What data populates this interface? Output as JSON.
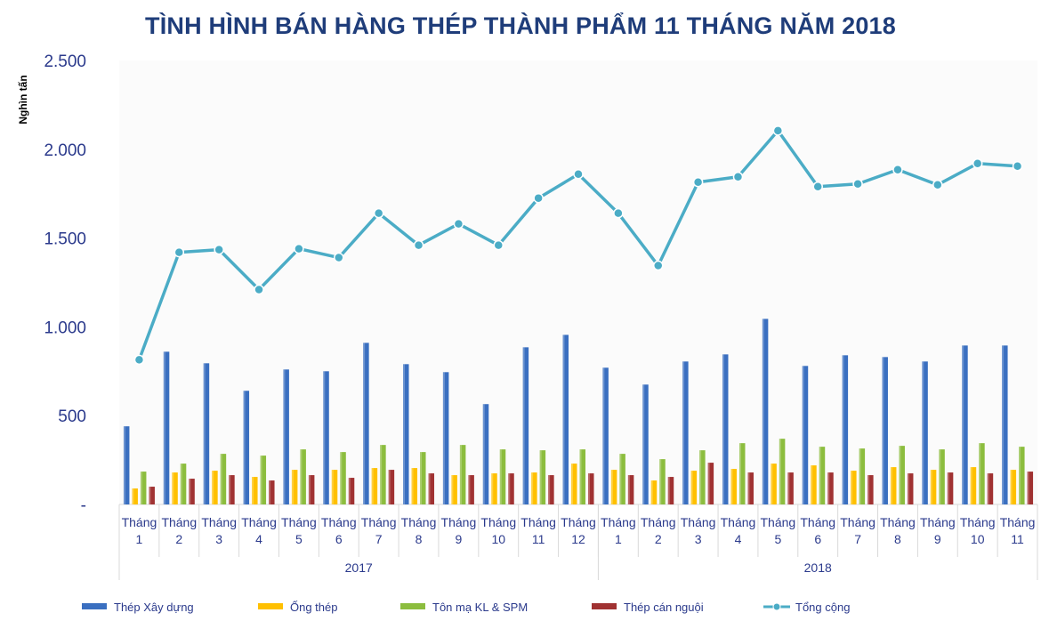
{
  "chart_data": {
    "type": "bar",
    "title": "TÌNH HÌNH BÁN HÀNG THÉP THÀNH PHẨM 11 THÁNG NĂM 2018",
    "ylabel": "Nghìn tấn",
    "ylim": [
      0,
      2500
    ],
    "yticks": [
      {
        "value": 0,
        "label": "-"
      },
      {
        "value": 500,
        "label": "500"
      },
      {
        "value": 1000,
        "label": "1.000"
      },
      {
        "value": 1500,
        "label": "1.500"
      },
      {
        "value": 2000,
        "label": "2.000"
      },
      {
        "value": 2500,
        "label": "2.500"
      }
    ],
    "categories": [
      "Tháng 1",
      "Tháng 2",
      "Tháng 3",
      "Tháng 4",
      "Tháng 5",
      "Tháng 6",
      "Tháng 7",
      "Tháng 8",
      "Tháng 9",
      "Tháng 10",
      "Tháng 11",
      "Tháng 12",
      "Tháng 1",
      "Tháng 2",
      "Tháng 3",
      "Tháng 4",
      "Tháng 5",
      "Tháng 6",
      "Tháng 7",
      "Tháng 8",
      "Tháng 9",
      "Tháng 10",
      "Tháng 11"
    ],
    "category_lines": [
      [
        "Tháng",
        "1"
      ],
      [
        "Tháng",
        "2"
      ],
      [
        "Tháng",
        "3"
      ],
      [
        "Tháng",
        "4"
      ],
      [
        "Tháng",
        "5"
      ],
      [
        "Tháng",
        "6"
      ],
      [
        "Tháng",
        "7"
      ],
      [
        "Tháng",
        "8"
      ],
      [
        "Tháng",
        "9"
      ],
      [
        "Tháng",
        "10"
      ],
      [
        "Tháng",
        "11"
      ],
      [
        "Tháng",
        "12"
      ],
      [
        "Tháng",
        "1"
      ],
      [
        "Tháng",
        "2"
      ],
      [
        "Tháng",
        "3"
      ],
      [
        "Tháng",
        "4"
      ],
      [
        "Tháng",
        "5"
      ],
      [
        "Tháng",
        "6"
      ],
      [
        "Tháng",
        "7"
      ],
      [
        "Tháng",
        "8"
      ],
      [
        "Tháng",
        "9"
      ],
      [
        "Tháng",
        "10"
      ],
      [
        "Tháng",
        "11"
      ]
    ],
    "groups": [
      {
        "label": "2017",
        "count": 12
      },
      {
        "label": "2018",
        "count": 11
      }
    ],
    "grid": false,
    "legend_position": "bottom",
    "series": [
      {
        "name": "Thép Xây dựng",
        "kind": "bar",
        "color": "#3a6fc0",
        "values": [
          440,
          860,
          795,
          640,
          760,
          750,
          910,
          790,
          745,
          565,
          885,
          955,
          770,
          675,
          805,
          845,
          1045,
          780,
          840,
          830,
          805,
          895,
          895
        ]
      },
      {
        "name": "Ống thép",
        "kind": "bar",
        "color": "#ffc000",
        "values": [
          90,
          180,
          190,
          155,
          195,
          195,
          205,
          205,
          165,
          175,
          180,
          230,
          195,
          135,
          190,
          200,
          230,
          220,
          190,
          210,
          195,
          210,
          195
        ]
      },
      {
        "name": "Tôn mạ KL & SPM",
        "kind": "bar",
        "color": "#8cbd3e",
        "values": [
          185,
          230,
          285,
          275,
          310,
          295,
          335,
          295,
          335,
          310,
          305,
          310,
          285,
          255,
          305,
          345,
          370,
          325,
          315,
          330,
          310,
          345,
          325
        ]
      },
      {
        "name": "Thép cán nguội",
        "kind": "bar",
        "color": "#a03232",
        "values": [
          100,
          145,
          165,
          135,
          165,
          150,
          195,
          175,
          165,
          175,
          165,
          175,
          165,
          155,
          235,
          180,
          180,
          180,
          165,
          175,
          180,
          175,
          185
        ]
      },
      {
        "name": "Tổng cộng",
        "kind": "line",
        "color": "#4bacc6",
        "values": [
          815,
          1420,
          1435,
          1210,
          1440,
          1390,
          1640,
          1460,
          1580,
          1460,
          1725,
          1860,
          1640,
          1345,
          1815,
          1845,
          2105,
          1790,
          1805,
          1885,
          1800,
          1920,
          1905
        ]
      }
    ]
  }
}
